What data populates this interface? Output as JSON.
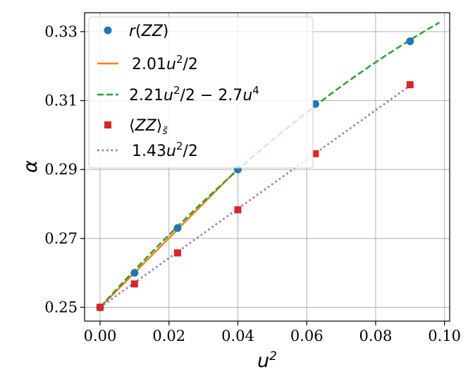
{
  "chart_data": {
    "type": "scatter",
    "xlabel": "u²",
    "ylabel": "α",
    "xlim": [
      -0.0045,
      0.1015
    ],
    "ylim": [
      0.246,
      0.3355
    ],
    "xticks": [
      0.0,
      0.02,
      0.04,
      0.06,
      0.08,
      0.1
    ],
    "xtick_labels": [
      "0.00",
      "0.02",
      "0.04",
      "0.06",
      "0.08",
      "0.10"
    ],
    "yticks": [
      0.25,
      0.27,
      0.29,
      0.31,
      0.33
    ],
    "ytick_labels": [
      "0.25",
      "0.27",
      "0.29",
      "0.31",
      "0.33"
    ],
    "grid": true,
    "legend_position": "top-left",
    "series": [
      {
        "name": "r(ZZ)",
        "kind": "scatter",
        "marker": "circle",
        "color": "#1f77b4",
        "x": [
          0.0,
          0.01,
          0.0225,
          0.04,
          0.0625,
          0.09
        ],
        "y": [
          0.25,
          0.26,
          0.273,
          0.29,
          0.309,
          0.3272
        ]
      },
      {
        "name": "2.01u²/2",
        "kind": "line",
        "style": "solid",
        "color": "#ff7f0e",
        "coef_quadratic": 1.005,
        "intercept": 0.25,
        "x_range": [
          0.0,
          0.039
        ]
      },
      {
        "name": "2.21u²/2 − 2.7u⁴",
        "kind": "line",
        "style": "dashed",
        "color": "#2ca02c",
        "coef_quadratic": 1.105,
        "coef_quartic": -2.7,
        "intercept": 0.25,
        "x_range": [
          0.0,
          0.0985
        ]
      },
      {
        "name": "⟨ZZ⟩s̃",
        "kind": "scatter",
        "marker": "square",
        "color": "#d62728",
        "x": [
          0.0,
          0.01,
          0.0225,
          0.04,
          0.0625,
          0.09
        ],
        "y": [
          0.25,
          0.2568,
          0.2658,
          0.2783,
          0.2946,
          0.3146
        ]
      },
      {
        "name": "1.43u²/2",
        "kind": "line",
        "style": "dotted",
        "color": "#9467bd",
        "coef_quadratic": 0.715,
        "intercept": 0.25,
        "x_range": [
          0.0,
          0.09
        ]
      }
    ]
  }
}
